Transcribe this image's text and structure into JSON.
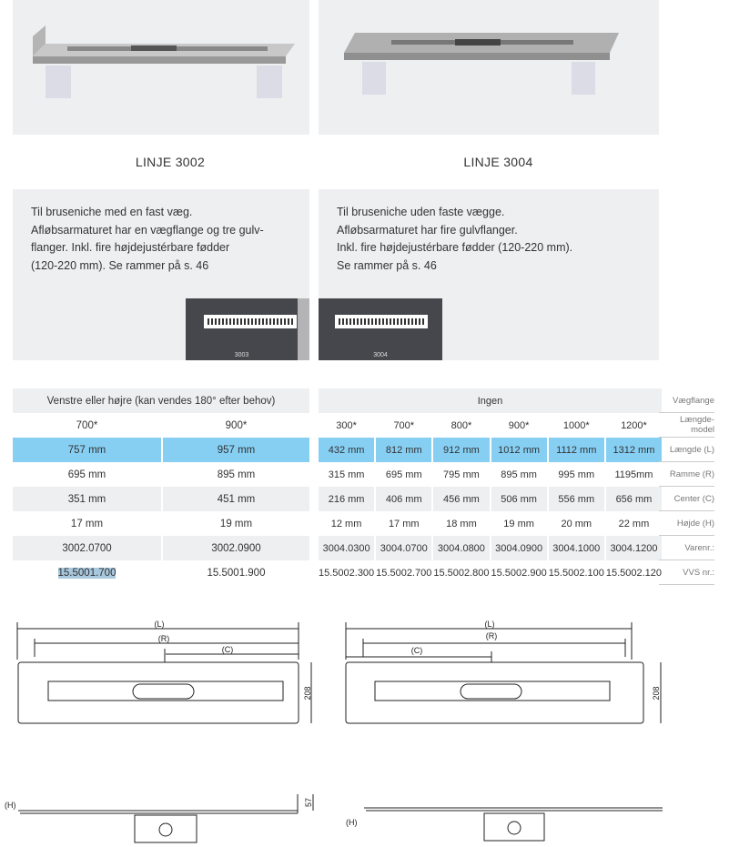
{
  "products": [
    {
      "title": "LINJE 3002",
      "description": [
        "Til bruseniche med en fast væg.",
        "Afløbsarmaturet har en vægflange og tre gulv-",
        "flanger. Inkl. fire højdejustérbare fødder",
        "(120-220 mm). Se rammer på s. 46"
      ],
      "frame_label": "3003"
    },
    {
      "title": "LINJE 3004",
      "description": [
        "Til bruseniche uden faste vægge.",
        "Afløbsarmaturet har fire gulvflanger.",
        "Inkl. fire højdejustérbare fødder (120-220 mm).",
        "Se rammer på s. 46"
      ],
      "frame_label": "3004"
    }
  ],
  "table": {
    "row_labels": [
      "Vægflange",
      "Længde-model",
      "Længde (L)",
      "Ramme (R)",
      "Center (C)",
      "Højde (H)",
      "Varenr.:",
      "VVS nr.:"
    ],
    "left": {
      "flange": "Venstre eller højre (kan vendes 180° efter behov)",
      "rows": [
        [
          "700*",
          "900*"
        ],
        [
          "757 mm",
          "957 mm"
        ],
        [
          "695 mm",
          "895 mm"
        ],
        [
          "351 mm",
          "451 mm"
        ],
        [
          "17 mm",
          "19 mm"
        ],
        [
          "3002.0700",
          "3002.0900"
        ],
        [
          "15.5001.700",
          "15.5001.900"
        ]
      ]
    },
    "right": {
      "flange": "Ingen",
      "rows": [
        [
          "300*",
          "700*",
          "800*",
          "900*",
          "1000*",
          "1200*"
        ],
        [
          "432 mm",
          "812 mm",
          "912 mm",
          "1012 mm",
          "1112 mm",
          "1312 mm"
        ],
        [
          "315 mm",
          "695 mm",
          "795 mm",
          "895 mm",
          "995 mm",
          "1195mm"
        ],
        [
          "216 mm",
          "406 mm",
          "456 mm",
          "506 mm",
          "556 mm",
          "656 mm"
        ],
        [
          "12 mm",
          "17 mm",
          "18 mm",
          "19 mm",
          "20 mm",
          "22 mm"
        ],
        [
          "3004.0300",
          "3004.0700",
          "3004.0800",
          "3004.0900",
          "3004.1000",
          "3004.1200"
        ],
        [
          "15.5002.300",
          "15.5002.700",
          "15.5002.800",
          "15.5002.900",
          "15.5002.100",
          "15.5002.120"
        ]
      ]
    },
    "highlight_color": "#86cff3"
  },
  "drawings": {
    "L": "(L)",
    "R": "(R)",
    "C": "(C)",
    "width": "208",
    "flange_height": "57",
    "H": "(H)"
  }
}
